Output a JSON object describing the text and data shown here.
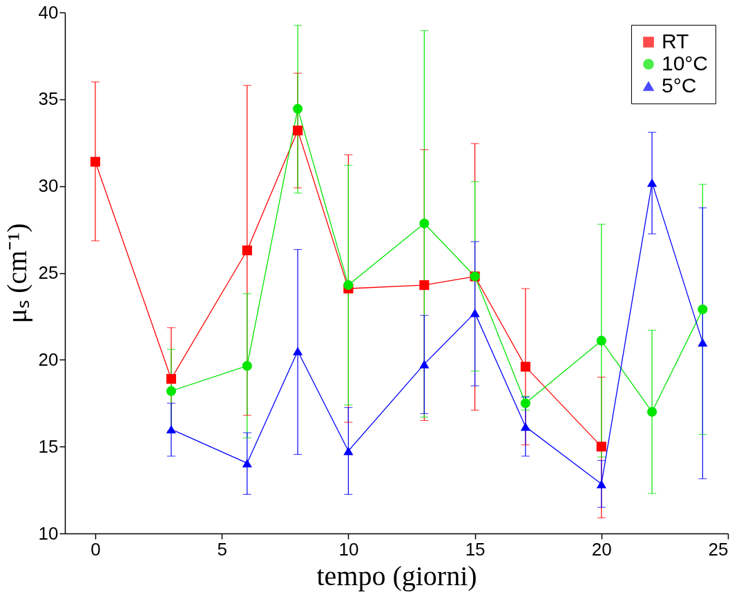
{
  "chart_data": {
    "type": "line",
    "xlabel": "tempo (giorni)",
    "ylabel": "μₛ (cm⁻¹)",
    "xlim": [
      -1.2,
      25
    ],
    "ylim": [
      10,
      40
    ],
    "xticks": [
      0,
      5,
      10,
      15,
      20,
      25
    ],
    "yticks": [
      10,
      15,
      20,
      25,
      30,
      35,
      40
    ],
    "grid": false,
    "legend": "top right",
    "line_style": "solid",
    "series": [
      {
        "name": "RT",
        "color": "#ff0000",
        "marker": "square",
        "x": [
          0,
          3,
          6,
          8,
          10,
          13,
          15,
          17,
          20
        ],
        "values": [
          31.4,
          18.9,
          26.3,
          33.2,
          24.1,
          24.3,
          24.8,
          19.6,
          15.0
        ],
        "errors": [
          [
            26.85,
            36.0
          ],
          [
            15.9,
            21.85
          ],
          [
            16.8,
            35.8
          ],
          [
            29.9,
            36.5
          ],
          [
            16.4,
            31.8
          ],
          [
            16.5,
            32.1
          ],
          [
            17.1,
            32.45
          ],
          [
            15.1,
            24.1
          ],
          [
            10.9,
            19.0
          ]
        ]
      },
      {
        "name": "10°C",
        "color": "#00e600",
        "marker": "circle",
        "x": [
          3,
          6,
          8,
          10,
          13,
          15,
          17,
          20,
          22,
          24
        ],
        "values": [
          18.2,
          19.65,
          34.45,
          24.3,
          27.85,
          24.8,
          17.5,
          21.1,
          17.0,
          22.9
        ],
        "errors": [
          [
            15.8,
            20.6
          ],
          [
            15.5,
            23.8
          ],
          [
            29.6,
            39.25
          ],
          [
            17.4,
            31.2
          ],
          [
            16.7,
            38.95
          ],
          [
            19.35,
            30.25
          ],
          [
            17.1,
            17.9
          ],
          [
            14.4,
            27.8
          ],
          [
            12.3,
            21.7
          ],
          [
            15.7,
            30.1
          ]
        ]
      },
      {
        "name": "5°C",
        "color": "#0000ff",
        "marker": "triangle",
        "x": [
          3,
          6,
          8,
          10,
          13,
          15,
          17,
          20,
          22,
          24
        ],
        "values": [
          16.0,
          14.05,
          20.5,
          14.75,
          19.75,
          22.7,
          16.15,
          12.85,
          30.2,
          21.0
        ],
        "errors": [
          [
            14.45,
            17.5
          ],
          [
            12.25,
            15.8
          ],
          [
            14.55,
            26.35
          ],
          [
            12.25,
            17.25
          ],
          [
            16.9,
            22.55
          ],
          [
            18.5,
            26.8
          ],
          [
            14.45,
            17.85
          ],
          [
            11.5,
            14.2
          ],
          [
            27.25,
            33.1
          ],
          [
            13.15,
            28.75
          ]
        ]
      }
    ]
  }
}
